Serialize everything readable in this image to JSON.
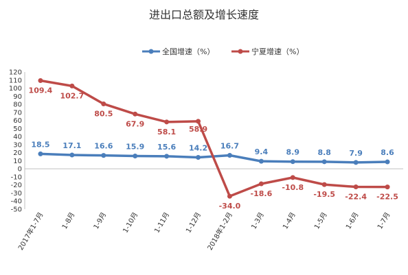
{
  "chart_data": {
    "type": "line",
    "title": "进出口总额及增长速度",
    "categories": [
      "2017年1-7月",
      "1-8月",
      "1-9月",
      "1-10月",
      "1-11月",
      "1-12月",
      "2018年1-2月",
      "1-3月",
      "1-4月",
      "1-5月",
      "1-6月",
      "1-7月"
    ],
    "series": [
      {
        "name": "全国增速（%）",
        "color": "#4a7ebb",
        "values": [
          18.5,
          17.1,
          16.6,
          15.9,
          15.6,
          14.2,
          16.7,
          9.4,
          8.9,
          8.8,
          7.9,
          8.6
        ]
      },
      {
        "name": "宁夏增速（%）",
        "color": "#be4b48",
        "values": [
          109.4,
          102.7,
          80.5,
          67.9,
          58.1,
          58.9,
          -34.0,
          -18.6,
          -10.8,
          -19.5,
          -22.4,
          -22.5
        ]
      }
    ],
    "data_labels": [
      [
        "18.5",
        "17.1",
        "16.6",
        "15.9",
        "15.6",
        "14.2",
        "16.7",
        "9.4",
        "8.9",
        "8.8",
        "7.9",
        "8.6"
      ],
      [
        "109.4",
        "102.7",
        "80.5",
        "67.9",
        "58.1",
        "58.9",
        "-34.0",
        "-18.6",
        "-10.8",
        "-19.5",
        "-22.4",
        "-22.5"
      ]
    ],
    "yticks": [
      120,
      110,
      100,
      90,
      80,
      70,
      60,
      50,
      40,
      30,
      20,
      10,
      0,
      -10,
      -20,
      -30,
      -40,
      -50
    ],
    "ylim": [
      -50,
      120
    ],
    "xlabel": "",
    "ylabel": "",
    "grid": false,
    "legend": "top-center"
  }
}
